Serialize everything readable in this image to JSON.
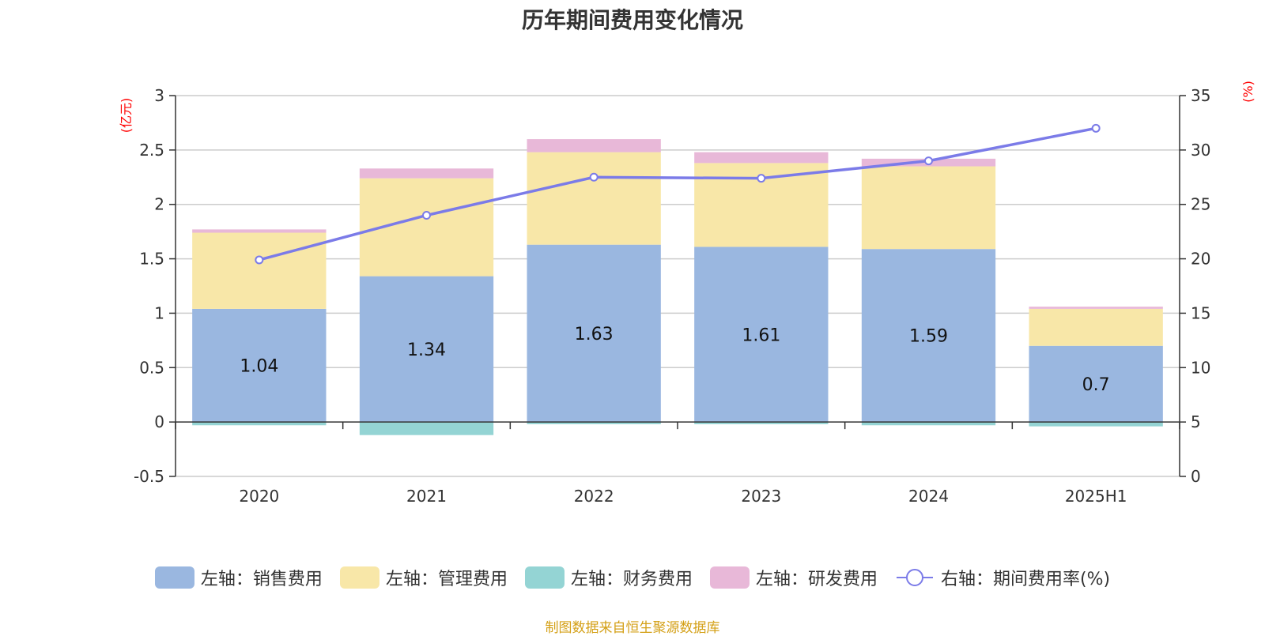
{
  "chart_data": {
    "type": "bar",
    "title": "历年期间费用变化情况",
    "categories": [
      "2020",
      "2021",
      "2022",
      "2023",
      "2024",
      "2025H1"
    ],
    "left_axis": {
      "unit_label": "(亿元)",
      "ylim": [
        -0.5,
        3
      ],
      "ticks": [
        "3",
        "2.5",
        "2",
        "1.5",
        "1",
        "0.5",
        "0",
        "-0.5"
      ]
    },
    "right_axis": {
      "unit_label": "(%)",
      "ylim": [
        0,
        35
      ],
      "ticks": [
        "35",
        "30",
        "25",
        "20",
        "15",
        "10",
        "5",
        "0"
      ]
    },
    "series": [
      {
        "name": "左轴：销售费用",
        "kind": "bar",
        "axis": "left",
        "color": "#9ab7e0",
        "values": [
          1.04,
          1.34,
          1.63,
          1.61,
          1.59,
          0.7
        ],
        "show_labels": true
      },
      {
        "name": "左轴：管理费用",
        "kind": "bar",
        "axis": "left",
        "color": "#f8e7a8",
        "values": [
          0.7,
          0.9,
          0.85,
          0.77,
          0.76,
          0.34
        ],
        "show_labels": false
      },
      {
        "name": "左轴：财务费用",
        "kind": "bar",
        "axis": "left",
        "color": "#94d4d4",
        "values": [
          -0.03,
          -0.12,
          -0.02,
          -0.02,
          -0.03,
          -0.04
        ],
        "show_labels": false
      },
      {
        "name": "左轴：研发费用",
        "kind": "bar",
        "axis": "left",
        "color": "#e8b8d8",
        "values": [
          0.03,
          0.09,
          0.12,
          0.1,
          0.07,
          0.02
        ],
        "show_labels": false
      },
      {
        "name": "右轴：期间费用率(%)",
        "kind": "line",
        "axis": "right",
        "color": "#7b7be8",
        "values": [
          19.9,
          24.0,
          27.5,
          27.4,
          29.0,
          32.0
        ],
        "show_labels": false
      }
    ],
    "grid": true,
    "legend_position": "bottom"
  },
  "source_note": "制图数据来自恒生聚源数据库"
}
